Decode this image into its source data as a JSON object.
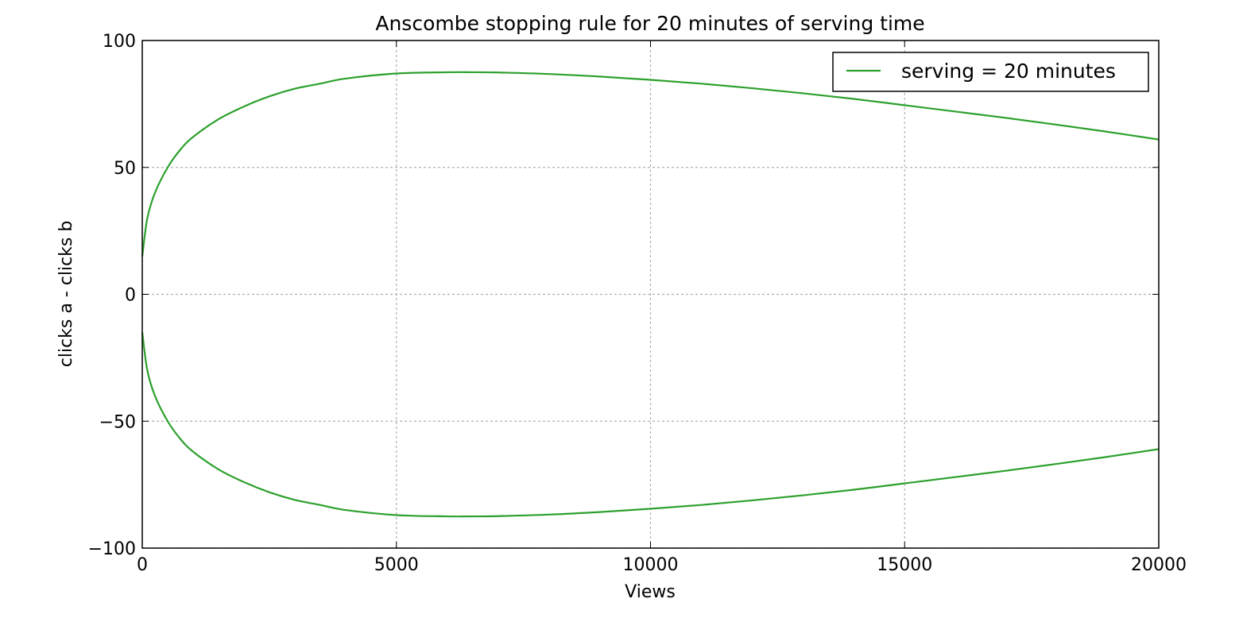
{
  "chart_data": {
    "type": "line",
    "title": "Anscombe stopping rule for 20 minutes of serving time",
    "xlabel": "Views",
    "ylabel": "clicks a - clicks b",
    "xlim": [
      0,
      20000
    ],
    "ylim": [
      -100,
      100
    ],
    "xticks": [
      0,
      5000,
      10000,
      15000,
      20000
    ],
    "xtick_labels": [
      "0",
      "5000",
      "10000",
      "15000",
      "20000"
    ],
    "yticks": [
      -100,
      -50,
      0,
      50,
      100
    ],
    "ytick_labels": [
      "−100",
      "−50",
      "0",
      "50",
      "100"
    ],
    "grid": true,
    "legend": {
      "position": "top-right",
      "entries": [
        "serving = 20 minutes"
      ]
    },
    "series": [
      {
        "name": "serving = 20 minutes",
        "color": "#2ca02c",
        "x": [
          0,
          100,
          250,
          500,
          750,
          1000,
          1500,
          2000,
          2500,
          3000,
          3500,
          4000,
          5000,
          6000,
          6500,
          7000,
          8000,
          9000,
          10000,
          11000,
          12000,
          13000,
          14000,
          15000,
          16000,
          17000,
          18000,
          19000,
          20000
        ],
        "y": [
          15,
          30,
          40,
          50,
          57,
          62,
          69,
          74,
          78,
          81,
          83,
          85,
          87,
          87.5,
          87.5,
          87.4,
          86.8,
          85.8,
          84.5,
          83,
          81.2,
          79.2,
          77,
          74.5,
          72,
          69.5,
          66.8,
          64,
          61
        ]
      },
      {
        "name": "",
        "color": "#2ca02c",
        "x": [
          0,
          100,
          250,
          500,
          750,
          1000,
          1500,
          2000,
          2500,
          3000,
          3500,
          4000,
          5000,
          6000,
          6500,
          7000,
          8000,
          9000,
          10000,
          11000,
          12000,
          13000,
          14000,
          15000,
          16000,
          17000,
          18000,
          19000,
          20000
        ],
        "y": [
          -15,
          -30,
          -40,
          -50,
          -57,
          -62,
          -69,
          -74,
          -78,
          -81,
          -83,
          -85,
          -87,
          -87.5,
          -87.5,
          -87.4,
          -86.8,
          -85.8,
          -84.5,
          -83,
          -81.2,
          -79.2,
          -77,
          -74.5,
          -72,
          -69.5,
          -66.8,
          -64,
          -61
        ]
      }
    ]
  }
}
